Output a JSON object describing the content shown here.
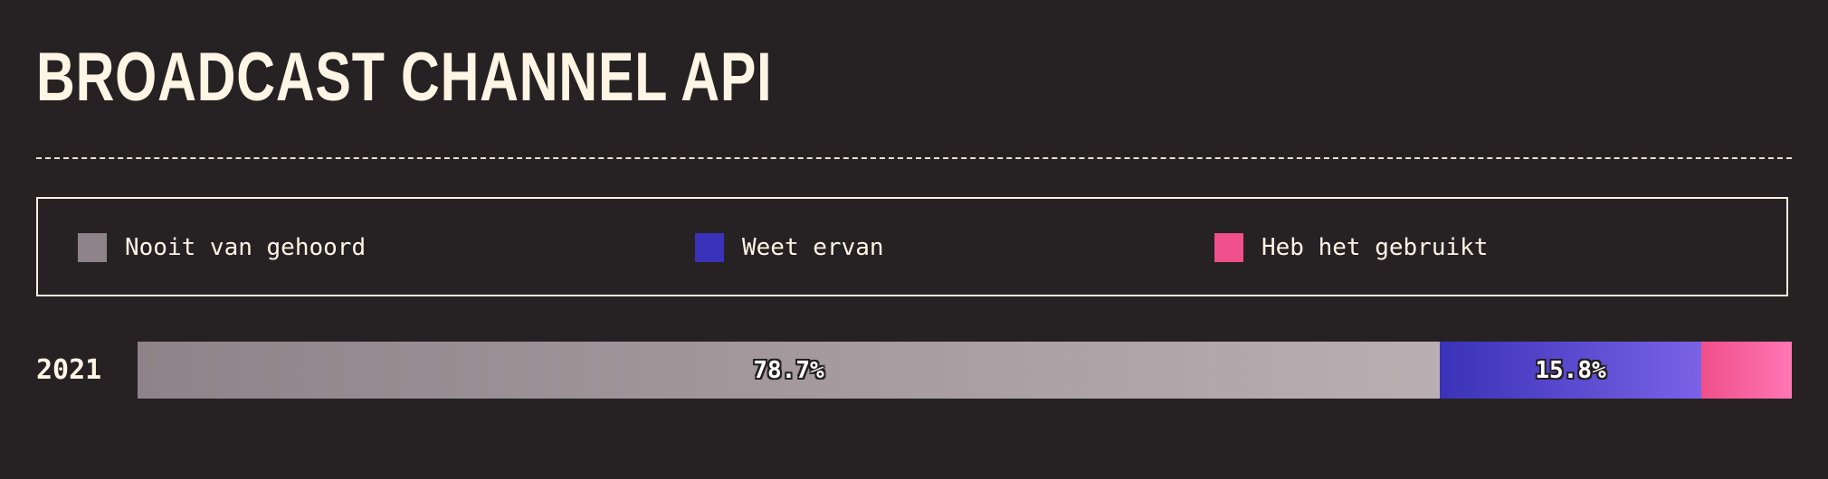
{
  "title": "BROADCAST CHANNEL API",
  "legend": [
    {
      "label": "Nooit van gehoord",
      "color": "#8e8388"
    },
    {
      "label": "Weet ervan",
      "color": "#3a32b8"
    },
    {
      "label": "Heb het gebruikt",
      "color": "#ef4f8a"
    }
  ],
  "chart_data": {
    "type": "bar",
    "orientation": "horizontal",
    "stacked": true,
    "categories": [
      "2021"
    ],
    "series": [
      {
        "name": "Nooit van gehoord",
        "values": [
          78.7
        ],
        "label": "78.7%"
      },
      {
        "name": "Weet ervan",
        "values": [
          15.8
        ],
        "label": "15.8%"
      },
      {
        "name": "Heb het gebruikt",
        "values": [
          5.5
        ],
        "label": ""
      }
    ],
    "unit": "%",
    "xlim": [
      0,
      100
    ],
    "legend_position": "top"
  }
}
